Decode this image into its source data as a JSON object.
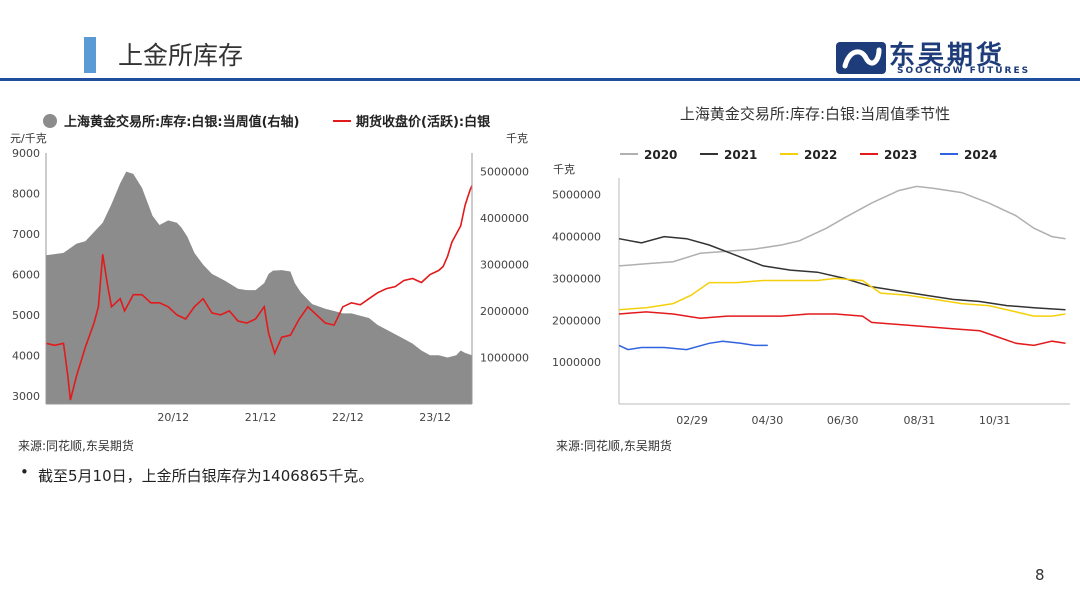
{
  "header": {
    "title": "上金所库存",
    "logo_cn": "东吴期货",
    "logo_en": "SOOCHOW FUTURES"
  },
  "left_source": "来源:同花顺,东吴期货",
  "right_source": "来源:同花顺,东吴期货",
  "note": "截至5月10日，上金所白银库存为1406865千克。",
  "page_number": "8",
  "chart_data": [
    {
      "type": "area",
      "legend": [
        "上海黄金交易所:库存:白银:当周值(右轴)",
        "期货收盘价(活跃):白银"
      ],
      "ylabel_left": "元/千克",
      "ylabel_right": "千克",
      "y_left_ticks": [
        "9000",
        "8000",
        "7000",
        "6000",
        "5000",
        "4000",
        "3000"
      ],
      "y_right_ticks": [
        "5000000",
        "4000000",
        "3000000",
        "2000000",
        "1000000"
      ],
      "ylim_left": [
        2800,
        9000
      ],
      "ylim_right": [
        0,
        5400000
      ],
      "x_ticks": [
        "20/12",
        "21/12",
        "22/12",
        "23/12"
      ],
      "x_tick_pos": [
        2020.958,
        2021.958,
        2022.958,
        2023.958
      ],
      "xlim": [
        2019.5,
        2024.38
      ],
      "series": [
        {
          "name": "上海黄金交易所:库存:白银:当周值(右轴)",
          "axis": "right",
          "color": "#8c8c8c",
          "x": [
            2019.5,
            2019.7,
            2019.85,
            2019.95,
            2020.05,
            2020.15,
            2020.25,
            2020.35,
            2020.42,
            2020.5,
            2020.6,
            2020.65,
            2020.72,
            2020.8,
            2020.9,
            2021.0,
            2021.05,
            2021.12,
            2021.2,
            2021.3,
            2021.4,
            2021.55,
            2021.7,
            2021.8,
            2021.9,
            2022.0,
            2022.05,
            2022.1,
            2022.2,
            2022.3,
            2022.35,
            2022.42,
            2022.55,
            2022.7,
            2022.8,
            2022.9,
            2023.0,
            2023.1,
            2023.2,
            2023.3,
            2023.4,
            2023.5,
            2023.6,
            2023.7,
            2023.8,
            2023.9,
            2024.0,
            2024.1,
            2024.2,
            2024.25,
            2024.3,
            2024.38
          ],
          "values": [
            3200000,
            3250000,
            3450000,
            3500000,
            3700000,
            3900000,
            4300000,
            4750000,
            5000000,
            4950000,
            4650000,
            4400000,
            4050000,
            3850000,
            3950000,
            3900000,
            3800000,
            3600000,
            3250000,
            3000000,
            2800000,
            2650000,
            2480000,
            2450000,
            2450000,
            2600000,
            2800000,
            2870000,
            2880000,
            2850000,
            2600000,
            2400000,
            2150000,
            2050000,
            2000000,
            1950000,
            1950000,
            1900000,
            1850000,
            1700000,
            1600000,
            1500000,
            1400000,
            1300000,
            1150000,
            1050000,
            1050000,
            1000000,
            1050000,
            1150000,
            1100000,
            1050000
          ]
        },
        {
          "name": "期货收盘价(活跃):白银",
          "axis": "left",
          "color": "#e31a1c",
          "x": [
            2019.5,
            2019.6,
            2019.7,
            2019.75,
            2019.78,
            2019.85,
            2019.95,
            2020.05,
            2020.1,
            2020.15,
            2020.2,
            2020.25,
            2020.3,
            2020.35,
            2020.4,
            2020.5,
            2020.6,
            2020.7,
            2020.8,
            2020.9,
            2021.0,
            2021.1,
            2021.2,
            2021.3,
            2021.4,
            2021.5,
            2021.6,
            2021.7,
            2021.8,
            2021.9,
            2022.0,
            2022.05,
            2022.12,
            2022.2,
            2022.3,
            2022.4,
            2022.5,
            2022.6,
            2022.7,
            2022.8,
            2022.9,
            2023.0,
            2023.1,
            2023.2,
            2023.3,
            2023.4,
            2023.5,
            2023.6,
            2023.7,
            2023.8,
            2023.9,
            2024.0,
            2024.05,
            2024.1,
            2024.15,
            2024.2,
            2024.25,
            2024.3,
            2024.33,
            2024.36,
            2024.38
          ],
          "values": [
            4300,
            4250,
            4300,
            3500,
            2900,
            3500,
            4200,
            4800,
            5200,
            6500,
            5800,
            5200,
            5300,
            5400,
            5100,
            5500,
            5500,
            5300,
            5300,
            5200,
            5000,
            4900,
            5200,
            5400,
            5050,
            5000,
            5100,
            4850,
            4800,
            4900,
            5200,
            4550,
            4050,
            4450,
            4500,
            4900,
            5200,
            5000,
            4800,
            4750,
            5200,
            5300,
            5250,
            5400,
            5550,
            5650,
            5700,
            5850,
            5900,
            5800,
            6000,
            6100,
            6200,
            6450,
            6800,
            7000,
            7200,
            7700,
            7900,
            8100,
            8200
          ]
        }
      ]
    },
    {
      "type": "line",
      "title": "上海黄金交易所:库存:白银:当周值季节性",
      "ylabel": "千克",
      "y_ticks": [
        "5000000",
        "4000000",
        "3000000",
        "2000000",
        "1000000"
      ],
      "ylim": [
        0,
        5400000
      ],
      "x_ticks": [
        "02/29",
        "04/30",
        "06/30",
        "08/31",
        "10/31"
      ],
      "x_tick_pos": [
        0.162,
        0.329,
        0.496,
        0.666,
        0.833
      ],
      "xlim": [
        0,
        1
      ],
      "series": [
        {
          "name": "2020",
          "color": "#b0b0b0",
          "x": [
            0.0,
            0.06,
            0.12,
            0.18,
            0.24,
            0.3,
            0.36,
            0.4,
            0.46,
            0.5,
            0.56,
            0.62,
            0.66,
            0.7,
            0.76,
            0.82,
            0.88,
            0.92,
            0.96,
            0.99
          ],
          "values": [
            3300000,
            3350000,
            3400000,
            3600000,
            3650000,
            3700000,
            3800000,
            3900000,
            4200000,
            4450000,
            4800000,
            5100000,
            5200000,
            5150000,
            5050000,
            4800000,
            4500000,
            4200000,
            4000000,
            3950000
          ]
        },
        {
          "name": "2021",
          "color": "#333333",
          "x": [
            0.0,
            0.05,
            0.1,
            0.15,
            0.2,
            0.26,
            0.32,
            0.38,
            0.44,
            0.5,
            0.56,
            0.62,
            0.68,
            0.74,
            0.8,
            0.86,
            0.92,
            0.99
          ],
          "values": [
            3950000,
            3850000,
            4000000,
            3950000,
            3800000,
            3550000,
            3300000,
            3200000,
            3150000,
            3000000,
            2800000,
            2700000,
            2600000,
            2500000,
            2450000,
            2350000,
            2300000,
            2250000
          ]
        },
        {
          "name": "2022",
          "color": "#f5d00a",
          "x": [
            0.0,
            0.06,
            0.12,
            0.16,
            0.2,
            0.26,
            0.32,
            0.38,
            0.44,
            0.48,
            0.54,
            0.58,
            0.64,
            0.7,
            0.76,
            0.82,
            0.88,
            0.92,
            0.96,
            0.99
          ],
          "values": [
            2250000,
            2300000,
            2400000,
            2600000,
            2900000,
            2900000,
            2950000,
            2950000,
            2950000,
            3000000,
            2950000,
            2650000,
            2600000,
            2500000,
            2400000,
            2350000,
            2200000,
            2100000,
            2100000,
            2150000
          ]
        },
        {
          "name": "2023",
          "color": "#e31a1c",
          "x": [
            0.0,
            0.06,
            0.12,
            0.18,
            0.24,
            0.3,
            0.36,
            0.42,
            0.48,
            0.54,
            0.56,
            0.62,
            0.68,
            0.74,
            0.8,
            0.84,
            0.88,
            0.92,
            0.96,
            0.99
          ],
          "values": [
            2150000,
            2200000,
            2150000,
            2050000,
            2100000,
            2100000,
            2100000,
            2150000,
            2150000,
            2100000,
            1950000,
            1900000,
            1850000,
            1800000,
            1750000,
            1600000,
            1450000,
            1400000,
            1500000,
            1450000
          ]
        },
        {
          "name": "2024",
          "color": "#2f63e0",
          "x": [
            0.0,
            0.02,
            0.05,
            0.1,
            0.15,
            0.2,
            0.23,
            0.27,
            0.3,
            0.33
          ],
          "values": [
            1400000,
            1300000,
            1350000,
            1350000,
            1300000,
            1450000,
            1500000,
            1450000,
            1400000,
            1400000
          ]
        }
      ]
    }
  ]
}
